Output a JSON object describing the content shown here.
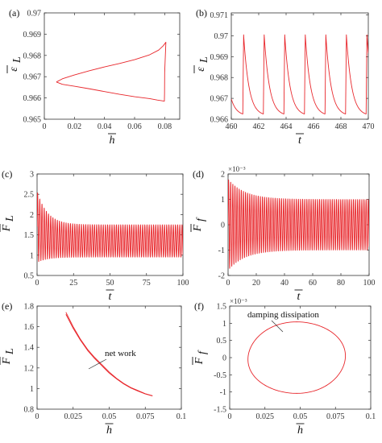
{
  "chart_data": [
    {
      "id": "a",
      "panel_label": "(a)",
      "type": "line",
      "xlabel": "h",
      "ylabel": "ε",
      "ylabel_sub": "L",
      "xlim": [
        0,
        0.09
      ],
      "ylim": [
        0.965,
        0.97
      ],
      "xticks": [
        "0",
        "0.02",
        "0.04",
        "0.06",
        "0.08"
      ],
      "yticks": [
        "0.965",
        "0.966",
        "0.967",
        "0.968",
        "0.969",
        "0.97"
      ],
      "series": [
        {
          "color": "#e8262b",
          "x": [
            0.008,
            0.012,
            0.02,
            0.03,
            0.04,
            0.05,
            0.06,
            0.07,
            0.076,
            0.079,
            0.0808,
            0.08,
            0.0799,
            0.0798,
            0.075,
            0.07,
            0.06,
            0.05,
            0.04,
            0.03,
            0.02,
            0.012,
            0.008
          ],
          "y": [
            0.96675,
            0.9669,
            0.96708,
            0.96728,
            0.96746,
            0.96762,
            0.9678,
            0.96803,
            0.96825,
            0.96845,
            0.96862,
            0.9672,
            0.9662,
            0.96585,
            0.9659,
            0.96597,
            0.96606,
            0.96617,
            0.9663,
            0.96643,
            0.96655,
            0.96664,
            0.96675
          ]
        }
      ]
    },
    {
      "id": "b",
      "panel_label": "(b)",
      "type": "line",
      "xlabel": "t",
      "ylabel": "ε",
      "ylabel_sub": "L",
      "xlim": [
        460,
        470
      ],
      "ylim": [
        0.966,
        0.9711
      ],
      "xticks": [
        "460",
        "462",
        "464",
        "466",
        "468",
        "470"
      ],
      "yticks": [
        "0.966",
        "0.967",
        "0.968",
        "0.969",
        "0.97",
        "0.971"
      ],
      "wave": {
        "period": 1.5,
        "phase": 460.9,
        "ymin": 0.96625,
        "ymax": 0.97005,
        "decay_rate": 2.6
      },
      "series": [
        {
          "color": "#e8262b"
        }
      ]
    },
    {
      "id": "c",
      "panel_label": "(c)",
      "type": "line",
      "xlabel": "t",
      "ylabel": "F",
      "ylabel_sub": "L",
      "xlim": [
        0,
        100
      ],
      "ylim": [
        0.5,
        3
      ],
      "xticks": [
        "0",
        "25",
        "50",
        "75",
        "100"
      ],
      "yticks": [
        "0.5",
        "1",
        "1.5",
        "2",
        "2.5",
        "3"
      ],
      "oscillation": {
        "period": 1.5,
        "center_start": 1.7,
        "center_end": 1.35,
        "amp_start": 0.88,
        "amp_end": 0.4,
        "tau": 7
      },
      "series": [
        {
          "color": "#e8262b"
        }
      ]
    },
    {
      "id": "d",
      "panel_label": "(d)",
      "type": "line",
      "xlabel": "t",
      "ylabel": "F",
      "ylabel_sub": "f",
      "multiplier": "×10⁻³",
      "xlim": [
        0,
        100
      ],
      "ylim": [
        -2,
        2
      ],
      "xticks": [
        "0",
        "20",
        "40",
        "60",
        "80",
        "100"
      ],
      "yticks": [
        "-2",
        "-1",
        "0",
        "1",
        "2"
      ],
      "oscillation": {
        "period": 1.5,
        "center_start": 0,
        "center_end": 0,
        "amp_start": 1.8,
        "amp_end": 1.0,
        "tau": 12
      },
      "series": [
        {
          "color": "#e8262b"
        }
      ]
    },
    {
      "id": "e",
      "panel_label": "(e)",
      "type": "line",
      "xlabel": "h",
      "ylabel": "F",
      "ylabel_sub": "L",
      "xlim": [
        0,
        0.1
      ],
      "ylim": [
        0.8,
        1.8
      ],
      "xticks": [
        "0",
        "0.025",
        "0.05",
        "0.075",
        "0.1"
      ],
      "yticks": [
        "0.8",
        "1",
        "1.2",
        "1.4",
        "1.6",
        "1.8"
      ],
      "annotation": "net work",
      "series": [
        {
          "color": "#e8262b",
          "x": [
            0.02,
            0.025,
            0.03,
            0.035,
            0.04,
            0.045,
            0.05,
            0.055,
            0.06,
            0.065,
            0.07,
            0.075,
            0.08
          ],
          "y": [
            1.74,
            1.6,
            1.48,
            1.38,
            1.3,
            1.23,
            1.16,
            1.1,
            1.05,
            1.01,
            0.98,
            0.95,
            0.93
          ]
        },
        {
          "color": "#e8262b",
          "x": [
            0.02,
            0.025,
            0.03,
            0.035,
            0.04,
            0.045,
            0.05,
            0.055,
            0.06,
            0.065,
            0.07,
            0.075,
            0.08
          ],
          "y": [
            1.72,
            1.585,
            1.47,
            1.37,
            1.29,
            1.22,
            1.15,
            1.095,
            1.045,
            1.005,
            0.975,
            0.948,
            0.928
          ]
        }
      ]
    },
    {
      "id": "f",
      "panel_label": "(f)",
      "type": "line",
      "xlabel": "h",
      "ylabel": "F",
      "ylabel_sub": "f",
      "multiplier": "×10⁻³",
      "xlim": [
        0,
        0.1
      ],
      "ylim": [
        -1.5,
        1.5
      ],
      "xticks": [
        "0",
        "0.025",
        "0.05",
        "0.075",
        "0.1"
      ],
      "yticks": [
        "-1.5",
        "-1",
        "-0.5",
        "0",
        "0.5",
        "1",
        "1.5"
      ],
      "annotation": "damping dissipation",
      "ellipse": {
        "cx": 0.0475,
        "cy": 0.0,
        "rx": 0.0345,
        "ry": 1.04
      },
      "series": [
        {
          "color": "#e8262b"
        }
      ]
    }
  ]
}
